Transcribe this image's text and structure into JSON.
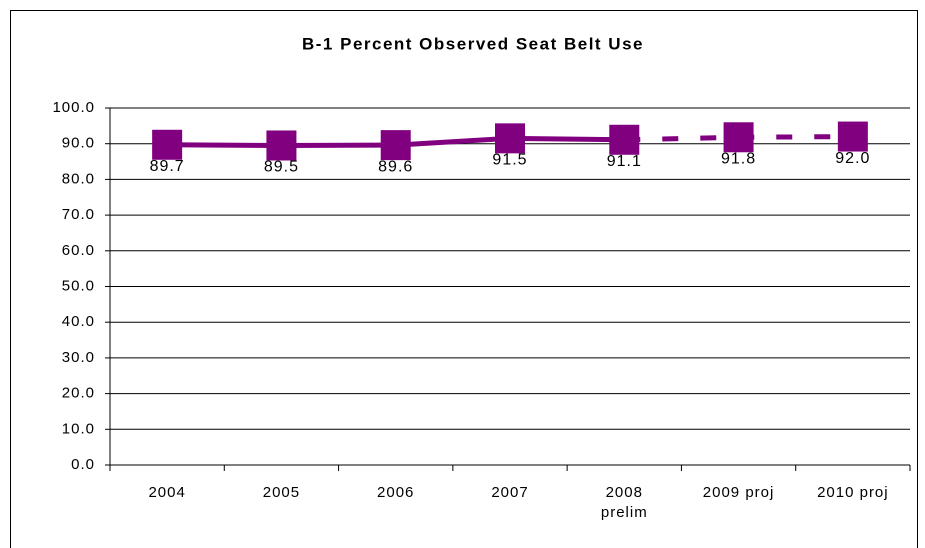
{
  "chart_data": {
    "type": "line",
    "title": "B-1 Percent Observed Seat Belt Use",
    "categories": [
      "2004",
      "2005",
      "2006",
      "2007",
      "2008 prelim",
      "2009 proj",
      "2010 proj"
    ],
    "values": [
      89.7,
      89.5,
      89.6,
      91.5,
      91.1,
      91.8,
      92.0
    ],
    "value_labels": [
      "89.7",
      "89.5",
      "89.6",
      "91.5",
      "91.1",
      "91.8",
      "92.0"
    ],
    "color": "#800080",
    "dashed_from": 4,
    "ylim": [
      0,
      100
    ],
    "yticks": [
      {
        "value": 0,
        "label": "0.0"
      },
      {
        "value": 10,
        "label": "10.0"
      },
      {
        "value": 20,
        "label": "20.0"
      },
      {
        "value": 30,
        "label": "30.0"
      },
      {
        "value": 40,
        "label": "40.0"
      },
      {
        "value": 50,
        "label": "50.0"
      },
      {
        "value": 60,
        "label": "60.0"
      },
      {
        "value": 70,
        "label": "70.0"
      },
      {
        "value": 80,
        "label": "80.0"
      },
      {
        "value": 90,
        "label": "90.0"
      },
      {
        "value": 100,
        "label": "100.0"
      }
    ],
    "grid": true
  }
}
